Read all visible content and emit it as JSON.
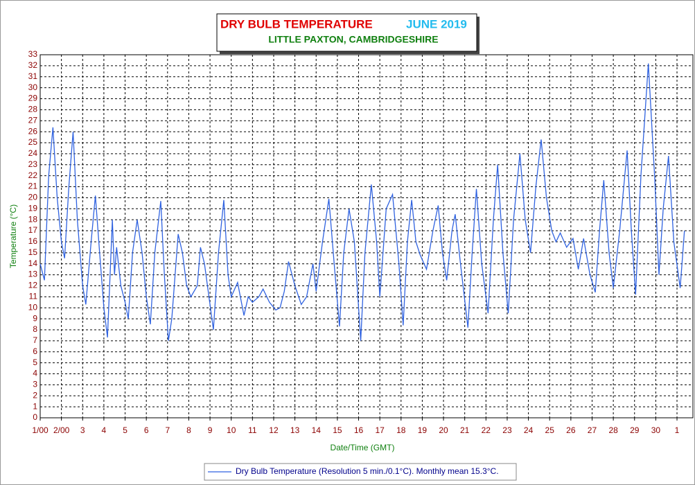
{
  "chart_data": {
    "type": "line",
    "title": "DRY BULB TEMPERATURE",
    "title_period": "JUNE 2019",
    "subtitle": "LITTLE PAXTON, CAMBRIDGESHIRE",
    "ylabel": "Temperature (°C)",
    "xlabel": "Date/Time (GMT)",
    "xlim": [
      0,
      30.75
    ],
    "ylim": [
      0,
      33
    ],
    "grid": true,
    "yticks": [
      0,
      1,
      2,
      3,
      4,
      5,
      6,
      7,
      8,
      9,
      10,
      11,
      12,
      13,
      14,
      15,
      16,
      17,
      18,
      19,
      20,
      21,
      22,
      23,
      24,
      25,
      26,
      27,
      28,
      29,
      30,
      31,
      32,
      33
    ],
    "xticks": [
      {
        "value": 0,
        "label": "1/00"
      },
      {
        "value": 1,
        "label": "2/00"
      },
      {
        "value": 2,
        "label": "3"
      },
      {
        "value": 3,
        "label": "4"
      },
      {
        "value": 4,
        "label": "5"
      },
      {
        "value": 5,
        "label": "6"
      },
      {
        "value": 6,
        "label": "7"
      },
      {
        "value": 7,
        "label": "8"
      },
      {
        "value": 8,
        "label": "9"
      },
      {
        "value": 9,
        "label": "10"
      },
      {
        "value": 10,
        "label": "11"
      },
      {
        "value": 11,
        "label": "12"
      },
      {
        "value": 12,
        "label": "13"
      },
      {
        "value": 13,
        "label": "14"
      },
      {
        "value": 14,
        "label": "15"
      },
      {
        "value": 15,
        "label": "16"
      },
      {
        "value": 16,
        "label": "17"
      },
      {
        "value": 17,
        "label": "18"
      },
      {
        "value": 18,
        "label": "19"
      },
      {
        "value": 19,
        "label": "20"
      },
      {
        "value": 20,
        "label": "21"
      },
      {
        "value": 21,
        "label": "22"
      },
      {
        "value": 22,
        "label": "23"
      },
      {
        "value": 23,
        "label": "24"
      },
      {
        "value": 24,
        "label": "25"
      },
      {
        "value": 25,
        "label": "26"
      },
      {
        "value": 26,
        "label": "27"
      },
      {
        "value": 27,
        "label": "28"
      },
      {
        "value": 28,
        "label": "29"
      },
      {
        "value": 29,
        "label": "30"
      },
      {
        "value": 30,
        "label": "1"
      }
    ],
    "x": [
      0,
      0.2,
      0.4,
      0.6,
      0.8,
      1.0,
      1.15,
      1.35,
      1.55,
      1.75,
      2.0,
      2.15,
      2.4,
      2.6,
      2.8,
      3.0,
      3.17,
      3.4,
      3.5,
      3.6,
      3.8,
      4.0,
      4.15,
      4.35,
      4.57,
      4.8,
      5.0,
      5.19,
      5.4,
      5.68,
      5.85,
      6.04,
      6.2,
      6.5,
      6.7,
      6.9,
      7.1,
      7.4,
      7.55,
      7.74,
      7.95,
      8.16,
      8.4,
      8.65,
      8.85,
      9.0,
      9.3,
      9.6,
      9.8,
      10.0,
      10.3,
      10.5,
      10.8,
      11.1,
      11.3,
      11.5,
      11.7,
      12.0,
      12.3,
      12.55,
      12.85,
      13.0,
      13.3,
      13.6,
      13.85,
      14.1,
      14.3,
      14.55,
      14.8,
      15.1,
      15.3,
      15.6,
      15.85,
      16.0,
      16.3,
      16.6,
      16.9,
      17.1,
      17.3,
      17.5,
      17.7,
      17.9,
      18.2,
      18.5,
      18.75,
      18.95,
      19.15,
      19.4,
      19.55,
      19.8,
      20.15,
      20.35,
      20.55,
      20.8,
      21.1,
      21.35,
      21.55,
      21.8,
      22.05,
      22.3,
      22.6,
      22.85,
      23.1,
      23.35,
      23.6,
      23.85,
      24.1,
      24.3,
      24.5,
      24.8,
      25.1,
      25.35,
      25.6,
      25.9,
      26.15,
      26.35,
      26.55,
      26.8,
      27.0,
      27.3,
      27.65,
      27.85,
      28.05,
      28.3,
      28.65,
      28.95,
      29.15,
      29.35,
      29.6,
      29.85,
      30.15,
      30.35
    ],
    "series": [
      {
        "name": "Dry Bulb Temperature (Resolution 5 min./0.1°C). Monthly mean 15.3°C.",
        "color": "#2f62e0",
        "values": [
          14,
          12.5,
          22,
          26.4,
          20,
          16,
          14.5,
          21,
          26,
          18,
          12,
          10.3,
          16,
          20.2,
          15,
          10,
          7.3,
          18,
          13,
          15.5,
          12,
          10.5,
          9,
          15,
          18,
          15,
          11,
          8.5,
          15,
          19.7,
          13,
          7,
          9,
          16.7,
          15,
          12,
          11,
          12,
          15.5,
          14,
          11,
          8,
          15,
          19.8,
          13,
          11,
          12.3,
          9.3,
          11,
          10.5,
          11,
          11.7,
          10.5,
          9.8,
          10,
          11.5,
          14.2,
          12,
          10.3,
          11,
          14,
          11.5,
          16,
          19.9,
          14,
          8.3,
          15,
          19,
          16,
          7,
          15,
          21.2,
          16,
          11,
          19,
          20.3,
          14,
          8.4,
          16,
          19.8,
          16,
          14.8,
          13.5,
          17,
          19.3,
          15,
          12.5,
          17,
          18.5,
          14,
          8.2,
          15,
          20.8,
          14,
          9.5,
          18,
          23,
          15,
          9.5,
          18,
          24,
          18,
          15,
          21,
          25.3,
          20,
          17,
          16,
          16.8,
          15.5,
          16.3,
          13.5,
          16.3,
          13,
          11.4,
          17,
          21.6,
          15,
          11.8,
          17,
          24.3,
          17,
          11.2,
          22,
          32.2,
          21.8,
          13,
          19,
          23.8,
          16,
          11.8,
          17
        ]
      }
    ]
  }
}
